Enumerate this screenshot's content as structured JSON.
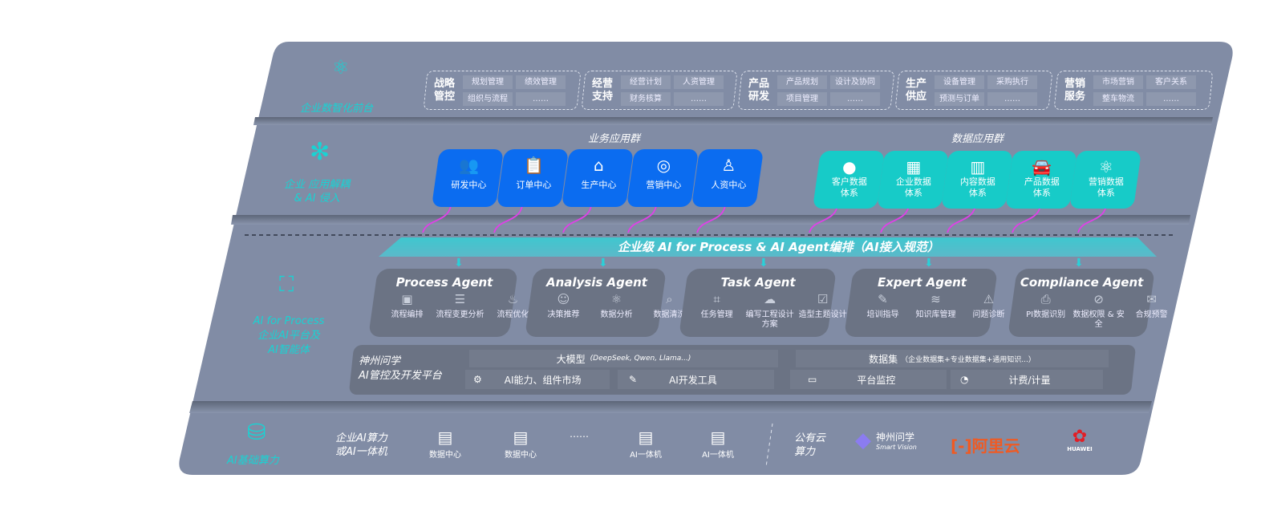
{
  "colors": {
    "panel": "#818ca5",
    "card_blue": "#0b6cf0",
    "card_teal": "#17cbc8",
    "accent": "#19d3d3",
    "arrow": "#e040e8",
    "agent_bg": "#6b7384"
  },
  "front": {
    "label": "企业数智化前台",
    "icon": "brain-icon",
    "groups": [
      {
        "title": "战略管控",
        "items": [
          "规划管理",
          "绩效管理",
          "组织与流程",
          "……"
        ]
      },
      {
        "title": "经营支持",
        "items": [
          "经营计划",
          "人资管理",
          "财务核算",
          "……"
        ]
      },
      {
        "title": "产品研发",
        "items": [
          "产品规划",
          "设计及协同",
          "项目管理",
          "……"
        ]
      },
      {
        "title": "生产供应",
        "items": [
          "设备管理",
          "采购执行",
          "预测与订单",
          "……"
        ]
      },
      {
        "title": "营销服务",
        "items": [
          "市场营销",
          "客户关系",
          "整车物流",
          "……"
        ]
      }
    ]
  },
  "apps": {
    "label_line1": "企业 应用解耦",
    "label_line2": "& AI 侵入",
    "icon": "molecule-icon",
    "business_title": "业务应用群",
    "business": [
      {
        "label": "研发中心",
        "icon": "users-icon"
      },
      {
        "label": "订单中心",
        "icon": "clipboard-icon"
      },
      {
        "label": "生产中心",
        "icon": "factory-icon"
      },
      {
        "label": "营销中心",
        "icon": "target-icon"
      },
      {
        "label": "人资中心",
        "icon": "person-icon"
      }
    ],
    "data_title": "数据应用群",
    "data": [
      {
        "line1": "客户数据",
        "line2": "体系",
        "icon": "user-icon"
      },
      {
        "line1": "企业数据",
        "line2": "体系",
        "icon": "building-icon"
      },
      {
        "line1": "内容数据",
        "line2": "体系",
        "icon": "books-icon"
      },
      {
        "line1": "产品数据",
        "line2": "体系",
        "icon": "car-icon"
      },
      {
        "line1": "营销数据",
        "line2": "体系",
        "icon": "atom-icon"
      }
    ]
  },
  "banner": "企业级 AI for Process & AI Agent编排（AI接入规范）",
  "ai": {
    "label_line1": "AI for Process",
    "label_line2": "企业AI平台及",
    "label_line3": "AI智能体",
    "icon": "face-scan-icon",
    "agents": [
      {
        "title": "Process Agent",
        "items": [
          "流程编排",
          "流程变更分析",
          "流程优化"
        ]
      },
      {
        "title": "Analysis Agent",
        "items": [
          "决策推荐",
          "数据分析",
          "数据清洗"
        ]
      },
      {
        "title": "Task Agent",
        "items": [
          "任务管理",
          "编写工程设计方案",
          "造型主题设计"
        ]
      },
      {
        "title": "Expert Agent",
        "items": [
          "培训指导",
          "知识库管理",
          "问题诊断"
        ]
      },
      {
        "title": "Compliance Agent",
        "items": [
          "PI数据识别",
          "数据权限 & 安全",
          "合规预警"
        ]
      }
    ],
    "platform": {
      "name_line1": "神州问学",
      "name_line2": "AI管控及开发平台",
      "model_title": "大模型",
      "model_note": "(DeepSeek, Qwen, Llama...)",
      "model_tools": [
        "AI能力、组件市场",
        "AI开发工具"
      ],
      "dataset_title": "数据集",
      "dataset_note": "（企业数据集+专业数据集+通用知识...）",
      "dataset_tools": [
        "平台监控",
        "计费/计量"
      ]
    }
  },
  "base": {
    "label": "AI基础算力",
    "icon": "database-icon",
    "onprem_line1": "企业AI算力",
    "onprem_line2": "或AI一体机",
    "servers": [
      "数据中心",
      "数据中心",
      "AI一体机",
      "AI一体机"
    ],
    "ellipsis": "……",
    "public_line1": "公有云",
    "public_line2": "算力",
    "logos": {
      "sv_cn": "神州问学",
      "sv_en": "Smart Vision",
      "aliyun": "阿里云",
      "huawei": "HUAWEI"
    }
  }
}
